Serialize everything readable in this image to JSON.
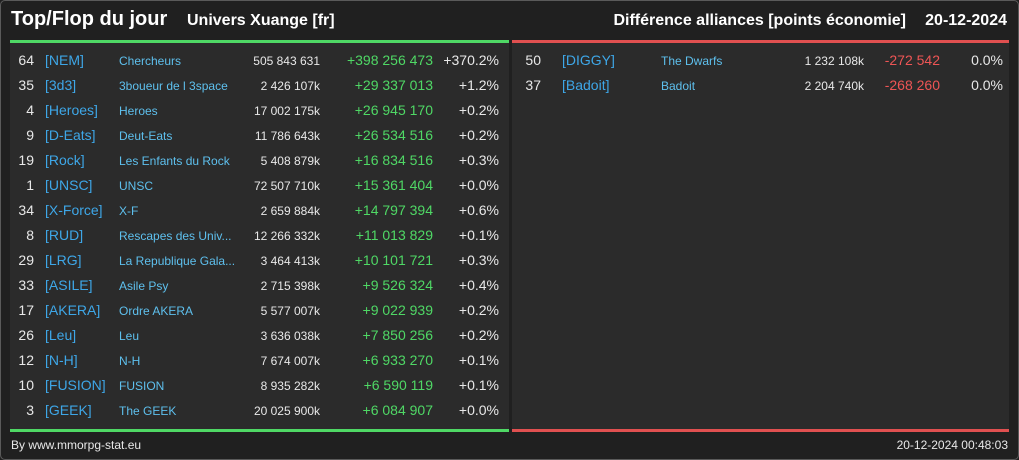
{
  "header": {
    "title": "Top/Flop du jour",
    "universe": "Univers Xuange [fr]",
    "subject": "Différence alliances [points économie]",
    "date": "20-12-2024"
  },
  "colors": {
    "top_accent": "#4fd865",
    "flop_accent": "#e05050",
    "link": "#3ea7e8"
  },
  "top": [
    {
      "rank": "64",
      "tag": "[NEM]",
      "name": "Chercheurs",
      "points": "505 843 631",
      "delta": "+398 256 473",
      "pct": "+370.2%"
    },
    {
      "rank": "35",
      "tag": "[3d3]",
      "name": "3boueur de l 3space",
      "points": "2 426 107k",
      "delta": "+29 337 013",
      "pct": "+1.2%"
    },
    {
      "rank": "4",
      "tag": "[Heroes]",
      "name": "Heroes",
      "points": "17 002 175k",
      "delta": "+26 945 170",
      "pct": "+0.2%"
    },
    {
      "rank": "9",
      "tag": "[D-Eats]",
      "name": "Deut-Eats",
      "points": "11 786 643k",
      "delta": "+26 534 516",
      "pct": "+0.2%"
    },
    {
      "rank": "19",
      "tag": "[Rock]",
      "name": "Les Enfants du Rock",
      "points": "5 408 879k",
      "delta": "+16 834 516",
      "pct": "+0.3%"
    },
    {
      "rank": "1",
      "tag": "[UNSC]",
      "name": "UNSC",
      "points": "72 507 710k",
      "delta": "+15 361 404",
      "pct": "+0.0%"
    },
    {
      "rank": "34",
      "tag": "[X-Force]",
      "name": "X-F",
      "points": "2 659 884k",
      "delta": "+14 797 394",
      "pct": "+0.6%"
    },
    {
      "rank": "8",
      "tag": "[RUD]",
      "name": "Rescapes des Univ...",
      "points": "12 266 332k",
      "delta": "+11 013 829",
      "pct": "+0.1%"
    },
    {
      "rank": "29",
      "tag": "[LRG]",
      "name": "La Republique Gala...",
      "points": "3 464 413k",
      "delta": "+10 101 721",
      "pct": "+0.3%"
    },
    {
      "rank": "33",
      "tag": "[ASILE]",
      "name": "Asile Psy",
      "points": "2 715 398k",
      "delta": "+9 526 324",
      "pct": "+0.4%"
    },
    {
      "rank": "17",
      "tag": "[AKERA]",
      "name": "Ordre AKERA",
      "points": "5 577 007k",
      "delta": "+9 022 939",
      "pct": "+0.2%"
    },
    {
      "rank": "26",
      "tag": "[Leu]",
      "name": "Leu",
      "points": "3 636 038k",
      "delta": "+7 850 256",
      "pct": "+0.2%"
    },
    {
      "rank": "12",
      "tag": "[N-H]",
      "name": "N-H",
      "points": "7 674 007k",
      "delta": "+6 933 270",
      "pct": "+0.1%"
    },
    {
      "rank": "10",
      "tag": "[FUSION]",
      "name": "FUSION",
      "points": "8 935 282k",
      "delta": "+6 590 119",
      "pct": "+0.1%"
    },
    {
      "rank": "3",
      "tag": "[GEEK]",
      "name": "The GEEK",
      "points": "20 025 900k",
      "delta": "+6 084 907",
      "pct": "+0.0%"
    }
  ],
  "flop": [
    {
      "rank": "50",
      "tag": "[DIGGY]",
      "name": "The Dwarfs",
      "points": "1 232 108k",
      "delta": "-272 542",
      "pct": "0.0%"
    },
    {
      "rank": "37",
      "tag": "[Badoit]",
      "name": "Badoit",
      "points": "2 204 740k",
      "delta": "-268 260",
      "pct": "0.0%"
    }
  ],
  "footer": {
    "credit": "By www.mmorpg-stat.eu",
    "timestamp": "20-12-2024 00:48:03"
  }
}
